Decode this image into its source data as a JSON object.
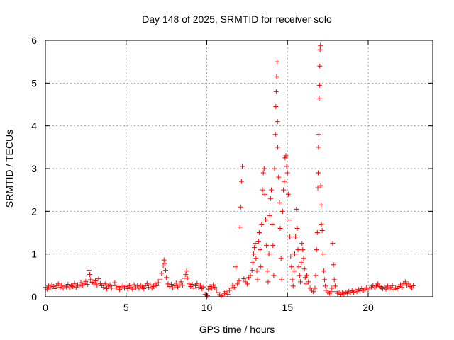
{
  "chart_data": {
    "type": "scatter",
    "title": "Day 148 of 2025, SRMTID for receiver solo",
    "xlabel": "GPS time / hours",
    "ylabel": "SRMTID / TECUs",
    "xlim": [
      0,
      24
    ],
    "ylim": [
      0,
      6
    ],
    "x_ticks": [
      0,
      5,
      10,
      15,
      20
    ],
    "y_ticks": [
      0,
      1,
      2,
      3,
      4,
      5,
      6
    ],
    "grid": true,
    "marker": "+",
    "series": [
      {
        "name": "solo",
        "color": "#ff0000",
        "points": [
          [
            0.0,
            0.22
          ],
          [
            0.1,
            0.18
          ],
          [
            0.2,
            0.25
          ],
          [
            0.3,
            0.21
          ],
          [
            0.4,
            0.28
          ],
          [
            0.5,
            0.24
          ],
          [
            0.6,
            0.19
          ],
          [
            0.7,
            0.26
          ],
          [
            0.8,
            0.3
          ],
          [
            0.9,
            0.22
          ],
          [
            1.0,
            0.27
          ],
          [
            1.1,
            0.2
          ],
          [
            1.2,
            0.25
          ],
          [
            1.3,
            0.23
          ],
          [
            1.4,
            0.29
          ],
          [
            1.5,
            0.21
          ],
          [
            1.6,
            0.26
          ],
          [
            1.7,
            0.24
          ],
          [
            1.8,
            0.31
          ],
          [
            1.9,
            0.22
          ],
          [
            2.0,
            0.28
          ],
          [
            2.1,
            0.25
          ],
          [
            2.2,
            0.33
          ],
          [
            2.3,
            0.27
          ],
          [
            2.4,
            0.3
          ],
          [
            2.5,
            0.36
          ],
          [
            2.6,
            0.29
          ],
          [
            2.7,
            0.62
          ],
          [
            2.75,
            0.52
          ],
          [
            2.8,
            0.4
          ],
          [
            2.9,
            0.34
          ],
          [
            3.0,
            0.3
          ],
          [
            3.1,
            0.37
          ],
          [
            3.2,
            0.28
          ],
          [
            3.3,
            0.42
          ],
          [
            3.4,
            0.31
          ],
          [
            3.5,
            0.26
          ],
          [
            3.6,
            0.22
          ],
          [
            3.7,
            0.3
          ],
          [
            3.8,
            0.19
          ],
          [
            3.9,
            0.25
          ],
          [
            4.0,
            0.28
          ],
          [
            4.1,
            0.2
          ],
          [
            4.2,
            0.26
          ],
          [
            4.3,
            0.33
          ],
          [
            4.4,
            0.21
          ],
          [
            4.5,
            0.24
          ],
          [
            4.6,
            0.17
          ],
          [
            4.7,
            0.23
          ],
          [
            4.8,
            0.27
          ],
          [
            4.9,
            0.2
          ],
          [
            5.0,
            0.24
          ],
          [
            5.1,
            0.19
          ],
          [
            5.2,
            0.26
          ],
          [
            5.3,
            0.22
          ],
          [
            5.4,
            0.18
          ],
          [
            5.5,
            0.28
          ],
          [
            5.6,
            0.21
          ],
          [
            5.7,
            0.25
          ],
          [
            5.8,
            0.2
          ],
          [
            5.9,
            0.27
          ],
          [
            6.0,
            0.23
          ],
          [
            6.1,
            0.19
          ],
          [
            6.2,
            0.26
          ],
          [
            6.3,
            0.31
          ],
          [
            6.4,
            0.22
          ],
          [
            6.5,
            0.28
          ],
          [
            6.6,
            0.2
          ],
          [
            6.7,
            0.24
          ],
          [
            6.8,
            0.3
          ],
          [
            6.9,
            0.26
          ],
          [
            7.0,
            0.33
          ],
          [
            7.1,
            0.4
          ],
          [
            7.2,
            0.55
          ],
          [
            7.3,
            0.72
          ],
          [
            7.35,
            0.86
          ],
          [
            7.4,
            0.78
          ],
          [
            7.45,
            0.62
          ],
          [
            7.5,
            0.45
          ],
          [
            7.6,
            0.3
          ],
          [
            7.7,
            0.24
          ],
          [
            7.8,
            0.29
          ],
          [
            7.9,
            0.21
          ],
          [
            8.0,
            0.26
          ],
          [
            8.1,
            0.32
          ],
          [
            8.2,
            0.23
          ],
          [
            8.3,
            0.28
          ],
          [
            8.4,
            0.35
          ],
          [
            8.5,
            0.27
          ],
          [
            8.6,
            0.43
          ],
          [
            8.7,
            0.52
          ],
          [
            8.75,
            0.6
          ],
          [
            8.8,
            0.44
          ],
          [
            8.9,
            0.3
          ],
          [
            9.0,
            0.24
          ],
          [
            9.1,
            0.29
          ],
          [
            9.2,
            0.2
          ],
          [
            9.3,
            0.26
          ],
          [
            9.4,
            0.31
          ],
          [
            9.5,
            0.22
          ],
          [
            9.6,
            0.27
          ],
          [
            9.7,
            0.19
          ],
          [
            9.8,
            0.23
          ],
          [
            9.9,
            0.06
          ],
          [
            10.0,
            0.0
          ],
          [
            10.05,
            0.03
          ],
          [
            10.1,
            0.18
          ],
          [
            10.2,
            0.24
          ],
          [
            10.3,
            0.2
          ],
          [
            10.4,
            0.28
          ],
          [
            10.5,
            0.22
          ],
          [
            10.6,
            0.16
          ],
          [
            10.7,
            0.1
          ],
          [
            10.8,
            0.05
          ],
          [
            10.9,
            0.02
          ],
          [
            11.0,
            0.04
          ],
          [
            11.1,
            0.08
          ],
          [
            11.2,
            0.12
          ],
          [
            11.3,
            0.06
          ],
          [
            11.4,
            0.15
          ],
          [
            11.5,
            0.2
          ],
          [
            11.6,
            0.27
          ],
          [
            11.7,
            0.22
          ],
          [
            11.8,
            0.7
          ],
          [
            11.9,
            0.3
          ],
          [
            12.0,
            0.38
          ],
          [
            12.05,
            1.63
          ],
          [
            12.1,
            2.1
          ],
          [
            12.15,
            2.7
          ],
          [
            12.2,
            3.05
          ],
          [
            12.3,
            0.42
          ],
          [
            12.4,
            0.35
          ],
          [
            12.5,
            0.3
          ],
          [
            12.6,
            0.45
          ],
          [
            12.7,
            0.5
          ],
          [
            12.8,
            0.62
          ],
          [
            12.85,
            0.8
          ],
          [
            12.9,
            1.0
          ],
          [
            12.95,
            1.15
          ],
          [
            13.0,
            1.25
          ],
          [
            13.05,
            0.9
          ],
          [
            13.1,
            0.6
          ],
          [
            13.15,
            0.4
          ],
          [
            13.2,
            1.3
          ],
          [
            13.25,
            1.5
          ],
          [
            13.3,
            1.1
          ],
          [
            13.35,
            0.7
          ],
          [
            13.4,
            1.7
          ],
          [
            13.45,
            2.5
          ],
          [
            13.5,
            2.9
          ],
          [
            13.55,
            3.0
          ],
          [
            13.6,
            2.4
          ],
          [
            13.65,
            1.8
          ],
          [
            13.7,
            1.2
          ],
          [
            13.75,
            0.6
          ],
          [
            13.8,
            0.35
          ],
          [
            13.85,
            1.0
          ],
          [
            13.9,
            1.9
          ],
          [
            13.95,
            2.3
          ],
          [
            14.0,
            2.5
          ],
          [
            14.05,
            1.7
          ],
          [
            14.1,
            1.2
          ],
          [
            14.15,
            0.5
          ],
          [
            14.2,
            3.0
          ],
          [
            14.25,
            3.8
          ],
          [
            14.28,
            4.45
          ],
          [
            14.3,
            4.8
          ],
          [
            14.33,
            5.15
          ],
          [
            14.35,
            5.5
          ],
          [
            14.38,
            4.1
          ],
          [
            14.4,
            3.5
          ],
          [
            14.45,
            2.8
          ],
          [
            14.5,
            2.2
          ],
          [
            14.55,
            1.6
          ],
          [
            14.6,
            0.9
          ],
          [
            14.65,
            0.4
          ],
          [
            14.7,
            2.0
          ],
          [
            14.75,
            2.5
          ],
          [
            14.8,
            2.7
          ],
          [
            14.85,
            3.25
          ],
          [
            14.9,
            3.3
          ],
          [
            14.95,
            3.05
          ],
          [
            15.0,
            2.9
          ],
          [
            15.05,
            2.4
          ],
          [
            15.1,
            1.8
          ],
          [
            15.15,
            1.4
          ],
          [
            15.2,
            0.95
          ],
          [
            15.25,
            0.7
          ],
          [
            15.3,
            0.4
          ],
          [
            15.35,
            0.25
          ],
          [
            15.4,
            0.6
          ],
          [
            15.45,
            1.0
          ],
          [
            15.5,
            1.4
          ],
          [
            15.55,
            2.05
          ],
          [
            15.6,
            1.6
          ],
          [
            15.65,
            1.1
          ],
          [
            15.7,
            0.7
          ],
          [
            15.75,
            0.5
          ],
          [
            15.8,
            0.35
          ],
          [
            15.85,
            0.8
          ],
          [
            15.9,
            1.25
          ],
          [
            15.95,
            1.1
          ],
          [
            16.0,
            0.9
          ],
          [
            16.05,
            0.65
          ],
          [
            16.1,
            0.45
          ],
          [
            16.15,
            0.3
          ],
          [
            16.2,
            0.5
          ],
          [
            16.3,
            0.35
          ],
          [
            16.4,
            0.2
          ],
          [
            16.5,
            0.15
          ],
          [
            16.6,
            0.12
          ],
          [
            16.7,
            0.2
          ],
          [
            16.75,
            0.5
          ],
          [
            16.8,
            1.1
          ],
          [
            16.85,
            1.5
          ],
          [
            16.88,
            2.55
          ],
          [
            16.9,
            2.9
          ],
          [
            16.92,
            3.5
          ],
          [
            16.94,
            3.8
          ],
          [
            16.96,
            4.65
          ],
          [
            16.98,
            4.95
          ],
          [
            17.0,
            5.4
          ],
          [
            17.02,
            5.78
          ],
          [
            17.04,
            5.88
          ],
          [
            17.06,
            2.6
          ],
          [
            17.08,
            2.15
          ],
          [
            17.1,
            1.7
          ],
          [
            17.15,
            1.55
          ],
          [
            17.2,
            1.0
          ],
          [
            17.25,
            0.6
          ],
          [
            17.3,
            0.4
          ],
          [
            17.35,
            0.25
          ],
          [
            17.4,
            0.15
          ],
          [
            17.5,
            0.1
          ],
          [
            17.6,
            0.08
          ],
          [
            17.7,
            0.12
          ],
          [
            17.75,
            0.2
          ],
          [
            17.8,
            1.25
          ],
          [
            17.85,
            0.75
          ],
          [
            17.9,
            0.4
          ],
          [
            17.95,
            0.25
          ],
          [
            18.0,
            0.12
          ],
          [
            18.1,
            0.08
          ],
          [
            18.2,
            0.1
          ],
          [
            18.3,
            0.06
          ],
          [
            18.4,
            0.09
          ],
          [
            18.5,
            0.07
          ],
          [
            18.6,
            0.11
          ],
          [
            18.7,
            0.08
          ],
          [
            18.8,
            0.13
          ],
          [
            18.9,
            0.1
          ],
          [
            19.0,
            0.14
          ],
          [
            19.1,
            0.11
          ],
          [
            19.2,
            0.16
          ],
          [
            19.3,
            0.12
          ],
          [
            19.4,
            0.17
          ],
          [
            19.5,
            0.14
          ],
          [
            19.6,
            0.19
          ],
          [
            19.7,
            0.15
          ],
          [
            19.8,
            0.18
          ],
          [
            19.9,
            0.21
          ],
          [
            20.0,
            0.16
          ],
          [
            20.1,
            0.2
          ],
          [
            20.2,
            0.23
          ],
          [
            20.3,
            0.26
          ],
          [
            20.4,
            0.21
          ],
          [
            20.5,
            0.25
          ],
          [
            20.6,
            0.3
          ],
          [
            20.7,
            0.24
          ],
          [
            20.8,
            0.22
          ],
          [
            20.9,
            0.19
          ],
          [
            21.0,
            0.23
          ],
          [
            21.1,
            0.18
          ],
          [
            21.2,
            0.25
          ],
          [
            21.3,
            0.2
          ],
          [
            21.4,
            0.22
          ],
          [
            21.5,
            0.26
          ],
          [
            21.6,
            0.17
          ],
          [
            21.7,
            0.21
          ],
          [
            21.8,
            0.19
          ],
          [
            21.9,
            0.24
          ],
          [
            22.0,
            0.28
          ],
          [
            22.1,
            0.22
          ],
          [
            22.2,
            0.31
          ],
          [
            22.3,
            0.35
          ],
          [
            22.4,
            0.27
          ],
          [
            22.5,
            0.3
          ],
          [
            22.6,
            0.24
          ],
          [
            22.7,
            0.21
          ],
          [
            22.8,
            0.26
          ]
        ]
      }
    ]
  }
}
